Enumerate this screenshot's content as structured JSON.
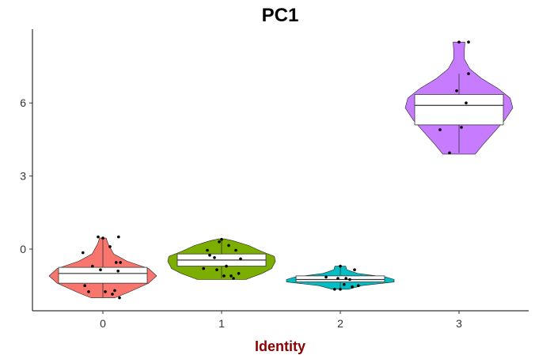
{
  "chart_data": {
    "type": "violin",
    "title": "PC1",
    "xlabel": "Identity",
    "ylabel": "",
    "ylim": [
      -2.1,
      8.6
    ],
    "yticks": [
      0,
      3,
      6
    ],
    "categories": [
      "0",
      "1",
      "2",
      "3"
    ],
    "grid": false,
    "legend": "none",
    "xlabel_color": "#8B0000",
    "series": [
      {
        "category": "0",
        "color": "#F8766D",
        "box": {
          "q1": -1.4,
          "median": -1.0,
          "q3": -0.75,
          "whisker_low": -2.0,
          "whisker_high": 0.45
        },
        "violin": [
          [
            -2.0,
            0.22
          ],
          [
            -1.8,
            0.45
          ],
          [
            -1.4,
            0.85
          ],
          [
            -1.1,
            1.0
          ],
          [
            -0.8,
            0.85
          ],
          [
            -0.5,
            0.45
          ],
          [
            -0.2,
            0.2
          ],
          [
            0.2,
            0.1
          ],
          [
            0.45,
            0.06
          ]
        ],
        "points": [
          {
            "x": -0.42,
            "y": -0.15
          },
          {
            "x": -0.3,
            "y": -1.75
          },
          {
            "x": -0.22,
            "y": -0.7
          },
          {
            "x": -0.1,
            "y": 0.5
          },
          {
            "x": -0.05,
            "y": -0.85
          },
          {
            "x": 0.0,
            "y": 0.45
          },
          {
            "x": 0.05,
            "y": -1.75
          },
          {
            "x": 0.15,
            "y": 0.1
          },
          {
            "x": 0.2,
            "y": -1.85
          },
          {
            "x": 0.25,
            "y": -1.7
          },
          {
            "x": 0.28,
            "y": -0.55
          },
          {
            "x": 0.32,
            "y": -0.9
          },
          {
            "x": 0.33,
            "y": 0.5
          },
          {
            "x": 0.35,
            "y": -2.0
          },
          {
            "x": 0.37,
            "y": -0.55
          },
          {
            "x": -0.38,
            "y": -1.5
          }
        ]
      },
      {
        "category": "1",
        "color": "#7CAE00",
        "box": {
          "q1": -0.7,
          "median": -0.45,
          "q3": -0.2,
          "whisker_low": -1.2,
          "whisker_high": 0.4
        },
        "violin": [
          [
            -1.25,
            0.45
          ],
          [
            -1.0,
            0.75
          ],
          [
            -0.8,
            0.93
          ],
          [
            -0.5,
            1.0
          ],
          [
            -0.3,
            0.98
          ],
          [
            -0.1,
            0.75
          ],
          [
            0.15,
            0.5
          ],
          [
            0.35,
            0.2
          ],
          [
            0.42,
            0.05
          ]
        ],
        "points": [
          {
            "x": -0.38,
            "y": -0.8
          },
          {
            "x": -0.25,
            "y": -0.25
          },
          {
            "x": -0.3,
            "y": -0.05
          },
          {
            "x": -0.15,
            "y": -0.35
          },
          {
            "x": -0.05,
            "y": 0.3
          },
          {
            "x": 0.0,
            "y": 0.4
          },
          {
            "x": 0.05,
            "y": -1.1
          },
          {
            "x": 0.1,
            "y": -0.7
          },
          {
            "x": 0.15,
            "y": 0.15
          },
          {
            "x": 0.2,
            "y": -1.1
          },
          {
            "x": 0.25,
            "y": -1.2
          },
          {
            "x": 0.3,
            "y": -0.05
          },
          {
            "x": 0.36,
            "y": -1.0
          },
          {
            "x": 0.4,
            "y": -0.4
          },
          {
            "x": -0.1,
            "y": -0.85
          }
        ]
      },
      {
        "category": "2",
        "color": "#00BFC4",
        "box": {
          "q1": -1.35,
          "median": -1.25,
          "q3": -1.1,
          "whisker_low": -1.6,
          "whisker_high": -0.7
        },
        "violin": [
          [
            -1.65,
            0.15
          ],
          [
            -1.5,
            0.4
          ],
          [
            -1.35,
            1.0
          ],
          [
            -1.25,
            1.0
          ],
          [
            -1.15,
            0.85
          ],
          [
            -1.0,
            0.32
          ],
          [
            -0.85,
            0.12
          ],
          [
            -0.7,
            0.1
          ]
        ],
        "points": [
          {
            "x": -0.12,
            "y": -1.65
          },
          {
            "x": 0.0,
            "y": -0.7
          },
          {
            "x": 0.0,
            "y": -1.65
          },
          {
            "x": 0.08,
            "y": -1.45
          },
          {
            "x": 0.12,
            "y": -1.2
          },
          {
            "x": -0.05,
            "y": -1.2
          },
          {
            "x": 0.2,
            "y": -1.25
          },
          {
            "x": 0.3,
            "y": -0.85
          },
          {
            "x": 0.38,
            "y": -1.5
          },
          {
            "x": -0.3,
            "y": -1.15
          },
          {
            "x": 0.25,
            "y": -1.55
          }
        ]
      },
      {
        "category": "3",
        "color": "#C77CFF",
        "box": {
          "q1": 5.1,
          "median": 5.9,
          "q3": 6.35,
          "whisker_low": 3.95,
          "whisker_high": 7.2
        },
        "violin": [
          [
            3.9,
            0.3
          ],
          [
            4.3,
            0.45
          ],
          [
            4.8,
            0.65
          ],
          [
            5.3,
            0.85
          ],
          [
            5.8,
            1.0
          ],
          [
            6.2,
            0.95
          ],
          [
            6.6,
            0.72
          ],
          [
            7.0,
            0.42
          ],
          [
            7.4,
            0.2
          ],
          [
            7.8,
            0.1
          ],
          [
            8.2,
            0.1
          ],
          [
            8.5,
            0.11
          ]
        ],
        "points": [
          {
            "x": -0.4,
            "y": 4.9
          },
          {
            "x": -0.2,
            "y": 3.95
          },
          {
            "x": -0.05,
            "y": 6.5
          },
          {
            "x": 0.0,
            "y": 8.5
          },
          {
            "x": 0.05,
            "y": 5.0
          },
          {
            "x": 0.2,
            "y": 8.5
          },
          {
            "x": 0.2,
            "y": 7.2
          },
          {
            "x": 0.15,
            "y": 6.0
          }
        ]
      }
    ]
  }
}
